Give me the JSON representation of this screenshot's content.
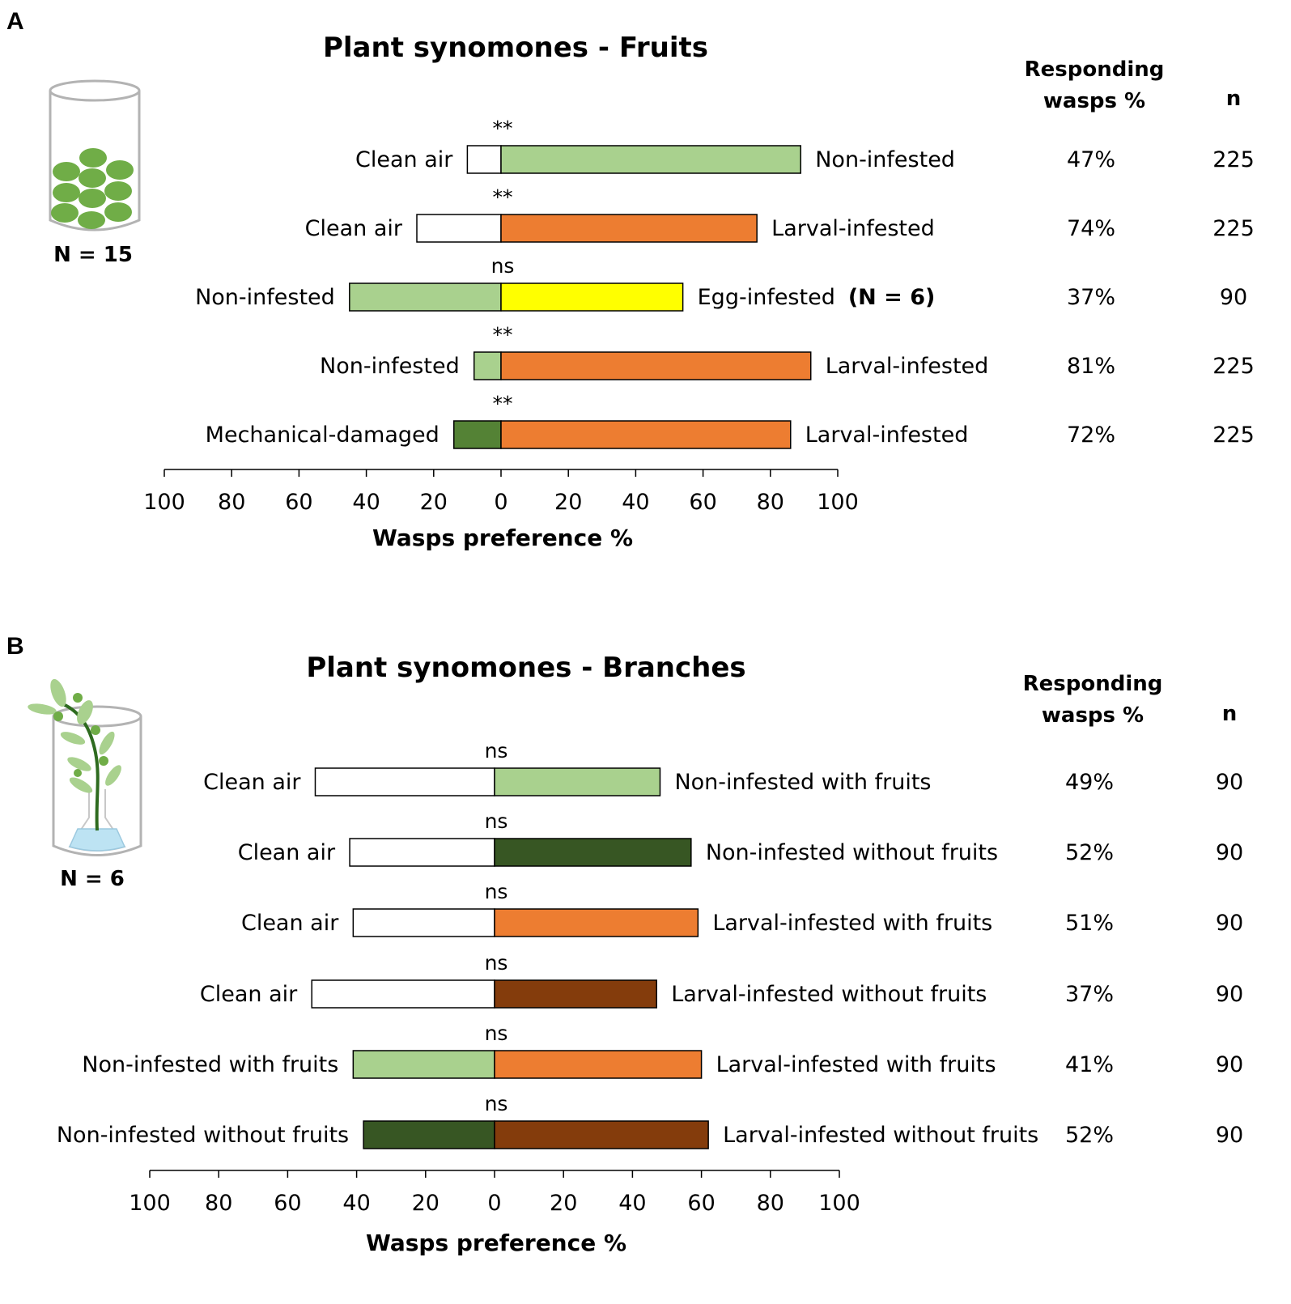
{
  "chart_data": [
    {
      "panel": "A",
      "type": "bar",
      "orientation": "horizontal-diverging",
      "title": "Plant synomones - Fruits",
      "xlabel": "Wasps preference %",
      "xlim": [
        -100,
        100
      ],
      "tick_labels": [
        "100",
        "80",
        "60",
        "40",
        "20",
        "0",
        "20",
        "40",
        "60",
        "80",
        "100"
      ],
      "header_responding_1": "Responding",
      "header_responding_2": "wasps %",
      "header_n": "n",
      "sample_label": "N = 15",
      "rows": [
        {
          "left": "Clean air",
          "right": "Non-infested",
          "right_extra": "",
          "left_pct": 10,
          "right_pct": 89,
          "left_color": "#ffffff",
          "right_color": "#a9d18e",
          "sig": "**",
          "responding": "47%",
          "n": "225"
        },
        {
          "left": "Clean air",
          "right": "Larval-infested",
          "right_extra": "",
          "left_pct": 25,
          "right_pct": 76,
          "left_color": "#ffffff",
          "right_color": "#ed7d31",
          "sig": "**",
          "responding": "74%",
          "n": "225"
        },
        {
          "left": "Non-infested",
          "right": "Egg-infested",
          "right_extra": "(N = 6)",
          "left_pct": 45,
          "right_pct": 54,
          "left_color": "#a9d18e",
          "right_color": "#ffff00",
          "sig": "ns",
          "responding": "37%",
          "n": "90"
        },
        {
          "left": "Non-infested",
          "right": "Larval-infested",
          "right_extra": "",
          "left_pct": 8,
          "right_pct": 92,
          "left_color": "#a9d18e",
          "right_color": "#ed7d31",
          "sig": "**",
          "responding": "81%",
          "n": "225"
        },
        {
          "left": "Mechanical-damaged",
          "right": "Larval-infested",
          "right_extra": "",
          "left_pct": 14,
          "right_pct": 86,
          "left_color": "#548235",
          "right_color": "#ed7d31",
          "sig": "**",
          "responding": "72%",
          "n": "225"
        }
      ]
    },
    {
      "panel": "B",
      "type": "bar",
      "orientation": "horizontal-diverging",
      "title": "Plant synomones - Branches",
      "xlabel": "Wasps preference %",
      "xlim": [
        -100,
        100
      ],
      "tick_labels": [
        "100",
        "80",
        "60",
        "40",
        "20",
        "0",
        "20",
        "40",
        "60",
        "80",
        "100"
      ],
      "header_responding_1": "Responding",
      "header_responding_2": "wasps %",
      "header_n": "n",
      "sample_label": "N = 6",
      "rows": [
        {
          "left": "Clean air",
          "right": "Non-infested with fruits",
          "right_extra": "",
          "left_pct": 52,
          "right_pct": 48,
          "left_color": "#ffffff",
          "right_color": "#a9d18e",
          "sig": "ns",
          "responding": "49%",
          "n": "90"
        },
        {
          "left": "Clean air",
          "right": "Non-infested without fruits",
          "right_extra": "",
          "left_pct": 42,
          "right_pct": 57,
          "left_color": "#ffffff",
          "right_color": "#375623",
          "sig": "ns",
          "responding": "52%",
          "n": "90"
        },
        {
          "left": "Clean air",
          "right": "Larval-infested with fruits",
          "right_extra": "",
          "left_pct": 41,
          "right_pct": 59,
          "left_color": "#ffffff",
          "right_color": "#ed7d31",
          "sig": "ns",
          "responding": "51%",
          "n": "90"
        },
        {
          "left": "Clean air",
          "right": "Larval-infested without fruits",
          "right_extra": "",
          "left_pct": 53,
          "right_pct": 47,
          "left_color": "#ffffff",
          "right_color": "#843c0c",
          "sig": "ns",
          "responding": "37%",
          "n": "90"
        },
        {
          "left": "Non-infested with fruits",
          "right": "Larval-infested with fruits",
          "right_extra": "",
          "left_pct": 41,
          "right_pct": 60,
          "left_color": "#a9d18e",
          "right_color": "#ed7d31",
          "sig": "ns",
          "responding": "41%",
          "n": "90"
        },
        {
          "left": "Non-infested without fruits",
          "right": "Larval-infested without fruits",
          "right_extra": "",
          "left_pct": 38,
          "right_pct": 62,
          "left_color": "#375623",
          "right_color": "#843c0c",
          "sig": "ns",
          "responding": "52%",
          "n": "90"
        }
      ]
    }
  ]
}
